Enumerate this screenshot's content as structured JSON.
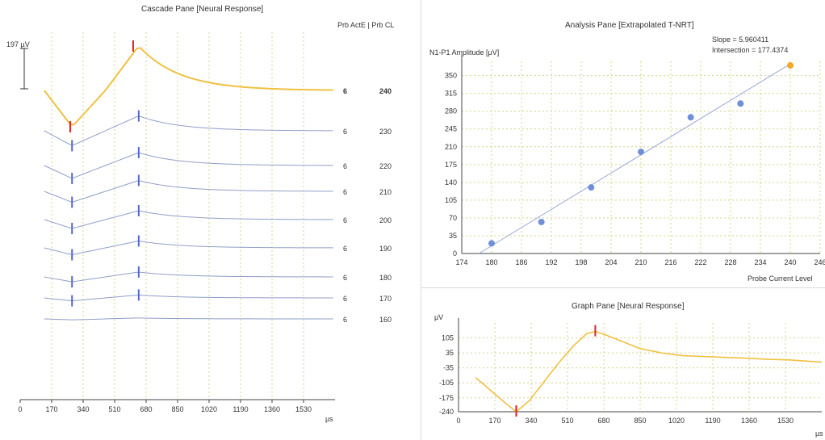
{
  "cascade_pane": {
    "title": "Cascade Pane [Neural Response]",
    "scale_label": "197 µV",
    "header_label": "Prb ActE | Prb CL",
    "x_unit": "µs"
  },
  "analysis_pane": {
    "title": "Analysis Pane [Extrapolated T-NRT]",
    "slope_text": "Slope = 5.960411",
    "intersection_text": "Intersection = 177.4374",
    "point_color": "#6f8fd8",
    "highlight_color": "#f5a623"
  },
  "graph_pane": {
    "title": "Graph Pane [Neural Response]",
    "y_unit": "µV",
    "x_unit": "µs",
    "curve_color": "#f0c040",
    "marker_color": "#e02020"
  },
  "chart_data": [
    {
      "type": "line",
      "name": "cascade",
      "xlabel": "µs",
      "x_ticks": [
        0,
        170,
        340,
        510,
        680,
        850,
        1020,
        1190,
        1360,
        1530
      ],
      "xlim": [
        0,
        1700
      ],
      "series": [
        {
          "name": "240",
          "activeE": "6",
          "highlight": true
        },
        {
          "name": "230",
          "activeE": "6"
        },
        {
          "name": "220",
          "activeE": "6"
        },
        {
          "name": "210",
          "activeE": "6"
        },
        {
          "name": "200",
          "activeE": "6"
        },
        {
          "name": "190",
          "activeE": "6"
        },
        {
          "name": "180",
          "activeE": "6"
        },
        {
          "name": "170",
          "activeE": "6"
        },
        {
          "name": "160",
          "activeE": "6"
        }
      ],
      "colors": {
        "highlight": "#f0c040",
        "normal": "#8f9fc8",
        "n1_highlight": "#e02020",
        "n1_normal": "#5566cc"
      }
    },
    {
      "type": "scatter",
      "name": "analysis",
      "xlabel": "Probe Current Level",
      "ylabel": "N1-P1 Amplitude [µV]",
      "xlim": [
        174,
        246
      ],
      "ylim": [
        0,
        378
      ],
      "x_ticks": [
        174,
        180,
        186,
        192,
        198,
        204,
        210,
        216,
        222,
        228,
        234,
        240,
        246
      ],
      "y_ticks": [
        0,
        35,
        70,
        105,
        140,
        175,
        210,
        245,
        280,
        315,
        350
      ],
      "points": [
        {
          "x": 180,
          "y": 20
        },
        {
          "x": 190,
          "y": 62
        },
        {
          "x": 200,
          "y": 130
        },
        {
          "x": 210,
          "y": 200
        },
        {
          "x": 220,
          "y": 268
        },
        {
          "x": 230,
          "y": 295
        },
        {
          "x": 240,
          "y": 370,
          "highlight": true
        }
      ],
      "fit_line": {
        "slope": 5.960411,
        "intercept_x": 177.4374
      }
    },
    {
      "type": "line",
      "name": "graph",
      "xlabel": "µs",
      "ylabel": "µV",
      "xlim": [
        0,
        1700
      ],
      "ylim": [
        -240,
        175
      ],
      "x_ticks": [
        0,
        170,
        340,
        510,
        680,
        850,
        1020,
        1190,
        1360,
        1530
      ],
      "y_ticks": [
        -240,
        -175,
        -105,
        -35,
        35,
        105
      ],
      "curve": [
        [
          80,
          -80
        ],
        [
          150,
          -140
        ],
        [
          220,
          -200
        ],
        [
          270,
          -240
        ],
        [
          330,
          -190
        ],
        [
          400,
          -100
        ],
        [
          470,
          -10
        ],
        [
          540,
          70
        ],
        [
          600,
          125
        ],
        [
          640,
          135
        ],
        [
          680,
          122
        ],
        [
          750,
          95
        ],
        [
          850,
          55
        ],
        [
          950,
          35
        ],
        [
          1050,
          22
        ],
        [
          1150,
          18
        ],
        [
          1250,
          14
        ],
        [
          1350,
          10
        ],
        [
          1450,
          5
        ],
        [
          1550,
          2
        ],
        [
          1650,
          -5
        ],
        [
          1700,
          -8
        ]
      ],
      "n1": [
        270,
        -240
      ],
      "p1": [
        640,
        135
      ]
    }
  ]
}
